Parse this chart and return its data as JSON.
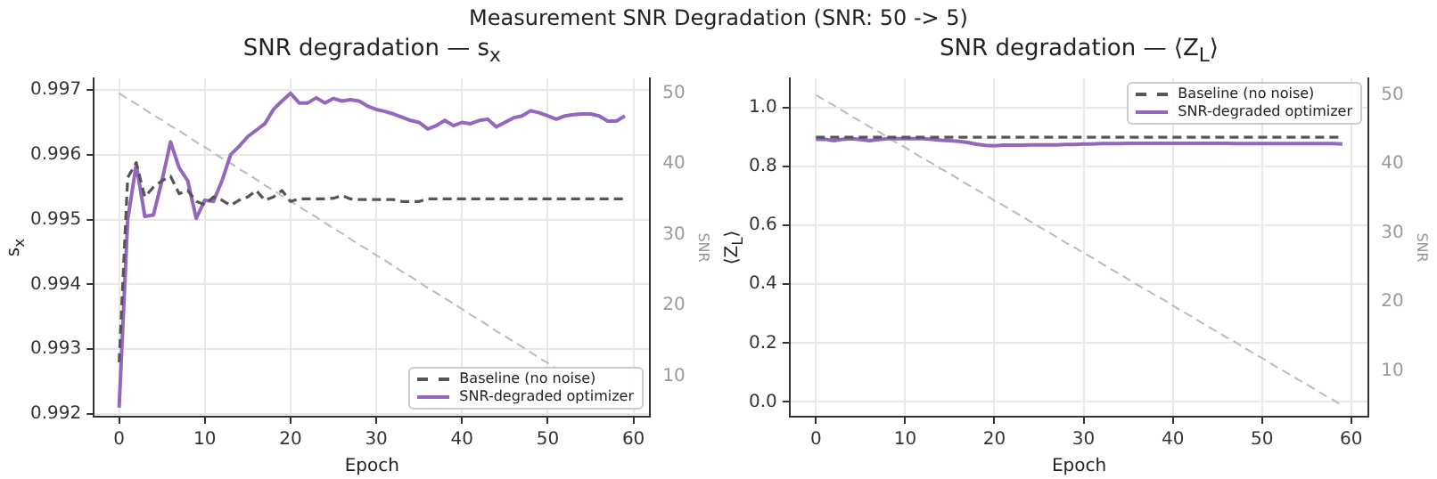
{
  "chart_data": [
    {
      "type": "line",
      "annotations": [
        "Measurement SNR Degradation (SNR: 50 -> 5)"
      ],
      "title": "SNR degradation — s$_{x}$",
      "xlabel": "Epoch",
      "ylabel": "s$_{x}$",
      "y2label": "SNR",
      "x": [
        0,
        1,
        2,
        3,
        4,
        5,
        6,
        7,
        8,
        9,
        10,
        11,
        12,
        13,
        14,
        15,
        16,
        17,
        18,
        19,
        20,
        21,
        22,
        23,
        24,
        25,
        26,
        27,
        28,
        29,
        30,
        31,
        32,
        33,
        34,
        35,
        36,
        37,
        38,
        39,
        40,
        41,
        42,
        43,
        44,
        45,
        46,
        47,
        48,
        49,
        50,
        51,
        52,
        53,
        54,
        55,
        56,
        57,
        58,
        59
      ],
      "xlim": [
        -2.95,
        61.95
      ],
      "xticks": [
        0,
        10,
        20,
        30,
        40,
        50,
        60
      ],
      "ylim": [
        0.99196,
        0.99718
      ],
      "yticks": [
        {
          "value": 0.992,
          "label": "0.992"
        },
        {
          "value": 0.993,
          "label": "0.993"
        },
        {
          "value": 0.994,
          "label": "0.994"
        },
        {
          "value": 0.995,
          "label": "0.995"
        },
        {
          "value": 0.996,
          "label": "0.996"
        },
        {
          "value": 0.997,
          "label": "0.997"
        }
      ],
      "y2lim": [
        4.3,
        52.1
      ],
      "y2ticks": [
        10,
        20,
        30,
        40,
        50
      ],
      "grid": true,
      "legend": "bottom right",
      "series": [
        {
          "name": "Baseline (no noise)",
          "color": "#555555",
          "line_style": "dashed",
          "values": [
            0.9928,
            0.99565,
            0.99588,
            0.99535,
            0.9955,
            0.9956,
            0.99567,
            0.9954,
            0.99545,
            0.99528,
            0.99523,
            0.99535,
            0.9953,
            0.99522,
            0.9953,
            0.99535,
            0.99545,
            0.9953,
            0.99535,
            0.99545,
            0.99528,
            0.99532,
            0.99532,
            0.99532,
            0.99532,
            0.99533,
            0.99537,
            0.99532,
            0.99531,
            0.99531,
            0.99531,
            0.99531,
            0.99531,
            0.99528,
            0.99528,
            0.99528,
            0.99532,
            0.99532,
            0.99532,
            0.99532,
            0.99532,
            0.99532,
            0.99532,
            0.99532,
            0.99532,
            0.99532,
            0.99532,
            0.99532,
            0.99532,
            0.99532,
            0.99532,
            0.99532,
            0.99532,
            0.99532,
            0.99532,
            0.99532,
            0.99532,
            0.99532,
            0.99532,
            0.99532
          ]
        },
        {
          "name": "SNR-degraded optimizer",
          "color": "#9467bd",
          "line_style": "solid",
          "values": [
            0.9921,
            0.995,
            0.99585,
            0.99505,
            0.99507,
            0.9956,
            0.9962,
            0.9958,
            0.9956,
            0.99502,
            0.9953,
            0.99528,
            0.9956,
            0.996,
            0.99613,
            0.99628,
            0.99638,
            0.99648,
            0.9967,
            0.99683,
            0.99695,
            0.9968,
            0.9968,
            0.99688,
            0.9968,
            0.99687,
            0.99683,
            0.99685,
            0.99683,
            0.99675,
            0.9967,
            0.99667,
            0.99663,
            0.99658,
            0.99653,
            0.9965,
            0.9964,
            0.99645,
            0.99653,
            0.99645,
            0.9965,
            0.99648,
            0.99653,
            0.99655,
            0.99643,
            0.9965,
            0.99657,
            0.9966,
            0.99668,
            0.99665,
            0.9966,
            0.99655,
            0.9966,
            0.99662,
            0.99663,
            0.99663,
            0.9966,
            0.99652,
            0.99652,
            0.9966
          ]
        },
        {
          "color": "#bbbbbb",
          "line_style": "dashed",
          "axis": "y2",
          "values": [
            50,
            49.2,
            48.5,
            47.7,
            46.9,
            46.2,
            45.4,
            44.7,
            43.9,
            43.1,
            42.4,
            41.6,
            40.8,
            40.1,
            39.3,
            38.6,
            37.8,
            37.0,
            36.3,
            35.5,
            34.7,
            34.0,
            33.2,
            32.5,
            31.7,
            30.9,
            30.2,
            29.4,
            28.6,
            27.9,
            27.1,
            26.4,
            25.6,
            24.8,
            24.1,
            23.3,
            22.5,
            21.8,
            21.0,
            20.3,
            19.5,
            18.7,
            18.0,
            17.2,
            16.4,
            15.7,
            14.9,
            14.2,
            13.4,
            12.6,
            11.9,
            11.1,
            null,
            null,
            null,
            null,
            null,
            null,
            null,
            null
          ]
        }
      ]
    },
    {
      "type": "line",
      "title": "SNR degradation — ⟨Z$_{L}$⟩",
      "xlabel": "Epoch",
      "ylabel": "⟨Z$_{L}$⟩",
      "y2label": "SNR",
      "x": [
        0,
        1,
        2,
        3,
        4,
        5,
        6,
        7,
        8,
        9,
        10,
        11,
        12,
        13,
        14,
        15,
        16,
        17,
        18,
        19,
        20,
        21,
        22,
        23,
        24,
        25,
        26,
        27,
        28,
        29,
        30,
        31,
        32,
        33,
        34,
        35,
        36,
        37,
        38,
        39,
        40,
        41,
        42,
        43,
        44,
        45,
        46,
        47,
        48,
        49,
        50,
        51,
        52,
        53,
        54,
        55,
        56,
        57,
        58,
        59
      ],
      "xlim": [
        -2.95,
        61.95
      ],
      "xticks": [
        0,
        10,
        20,
        30,
        40,
        50,
        60
      ],
      "ylim": [
        -0.05,
        1.1
      ],
      "yticks": [
        {
          "value": 0,
          "label": "0.0"
        },
        {
          "value": 0.2,
          "label": "0.2"
        },
        {
          "value": 0.4,
          "label": "0.4"
        },
        {
          "value": 0.6,
          "label": "0.6"
        },
        {
          "value": 0.8,
          "label": "0.8"
        },
        {
          "value": 1,
          "label": "1.0"
        }
      ],
      "y2lim": [
        3.4,
        52.4
      ],
      "y2ticks": [
        10,
        20,
        30,
        40,
        50
      ],
      "grid": true,
      "legend": "top right",
      "series": [
        {
          "name": "Baseline (no noise)",
          "color": "#555555",
          "line_style": "dashed",
          "values": [
            0.9,
            0.9,
            0.9,
            0.9,
            0.9,
            0.9,
            0.9,
            0.9,
            0.9,
            0.9,
            0.9,
            0.9,
            0.9,
            0.9,
            0.9,
            0.9,
            0.9,
            0.9,
            0.9,
            0.9,
            0.9,
            0.9,
            0.9,
            0.9,
            0.9,
            0.9,
            0.9,
            0.9,
            0.9,
            0.9,
            0.9,
            0.9,
            0.9,
            0.9,
            0.9,
            0.9,
            0.9,
            0.9,
            0.9,
            0.9,
            0.9,
            0.9,
            0.9,
            0.9,
            0.9,
            0.9,
            0.9,
            0.9,
            0.9,
            0.9,
            0.9,
            0.9,
            0.9,
            0.9,
            0.9,
            0.9,
            0.9,
            0.9,
            0.9,
            0.9
          ]
        },
        {
          "name": "SNR-degraded optimizer",
          "color": "#9467bd",
          "line_style": "solid",
          "values": [
            0.893,
            0.893,
            0.888,
            0.893,
            0.895,
            0.892,
            0.888,
            0.892,
            0.895,
            0.895,
            0.895,
            0.895,
            0.895,
            0.893,
            0.89,
            0.888,
            0.886,
            0.882,
            0.876,
            0.872,
            0.871,
            0.873,
            0.873,
            0.873,
            0.874,
            0.874,
            0.874,
            0.874,
            0.875,
            0.875,
            0.877,
            0.877,
            0.878,
            0.878,
            0.878,
            0.879,
            0.879,
            0.879,
            0.879,
            0.879,
            0.879,
            0.879,
            0.879,
            0.879,
            0.879,
            0.879,
            0.879,
            0.878,
            0.878,
            0.878,
            0.878,
            0.878,
            0.878,
            0.878,
            0.878,
            0.878,
            0.878,
            0.878,
            0.878,
            0.877
          ]
        },
        {
          "color": "#bbbbbb",
          "line_style": "dashed",
          "axis": "y2",
          "values": [
            50,
            49.2,
            48.5,
            47.7,
            46.9,
            46.2,
            45.4,
            44.7,
            43.9,
            43.1,
            42.4,
            41.6,
            40.8,
            40.1,
            39.3,
            38.6,
            37.8,
            37.0,
            36.3,
            35.5,
            34.7,
            34.0,
            33.2,
            32.5,
            31.7,
            30.9,
            30.2,
            29.4,
            28.6,
            27.9,
            27.1,
            26.4,
            25.6,
            24.8,
            24.1,
            23.3,
            22.5,
            21.8,
            21.0,
            20.3,
            19.5,
            18.7,
            18.0,
            17.2,
            16.4,
            15.7,
            14.9,
            14.2,
            13.4,
            12.6,
            11.9,
            11.1,
            10.3,
            9.6,
            8.8,
            8.1,
            7.3,
            6.5,
            5.8,
            5.0
          ]
        }
      ]
    }
  ]
}
